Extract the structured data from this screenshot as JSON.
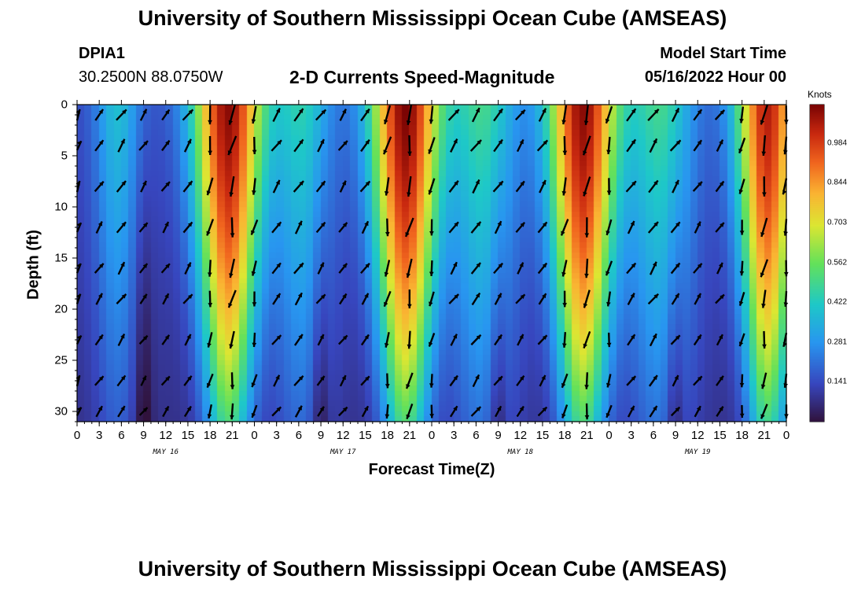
{
  "page": {
    "title": "University of Southern Mississippi Ocean Cube (AMSEAS)",
    "station_id": "DPIA1",
    "station_coords": "30.2500N  88.0750W",
    "plot_title": "2-D Currents Speed-Magnitude",
    "model_start_label": "Model Start Time",
    "model_start_value": "05/16/2022 Hour 00",
    "footer_title": "University of Southern Mississippi Ocean Cube (AMSEAS)"
  },
  "chart_data": {
    "type": "heatmap",
    "title": "2-D Currents Speed-Magnitude",
    "xlabel": "Forecast Time(Z)",
    "ylabel": "Depth (ft)",
    "colorbar_label": "Knots",
    "x_range_hours": [
      0,
      96
    ],
    "y_range_ft": [
      0,
      31
    ],
    "x_tick_labels": [
      "0",
      "3",
      "6",
      "9",
      "12",
      "15",
      "18",
      "21",
      "0",
      "3",
      "6",
      "9",
      "12",
      "15",
      "18",
      "21",
      "0",
      "3",
      "6",
      "9",
      "12",
      "15",
      "18",
      "21",
      "0",
      "3",
      "6",
      "9",
      "12",
      "15",
      "18",
      "21",
      "0"
    ],
    "date_labels": [
      {
        "text": "MAY 16",
        "hour": 12
      },
      {
        "text": "MAY 17",
        "hour": 36
      },
      {
        "text": "MAY 18",
        "hour": 60
      },
      {
        "text": "MAY 19",
        "hour": 84
      }
    ],
    "y_ticks": [
      0,
      5,
      10,
      15,
      20,
      25,
      30
    ],
    "colorbar_ticks": [
      "0.984",
      "0.844",
      "0.703",
      "0.562",
      "0.422",
      "0.281",
      "0.141"
    ],
    "colorbar_tick_values": [
      0.984,
      0.844,
      0.703,
      0.562,
      0.422,
      0.281,
      0.141
    ],
    "colorbar_range": [
      0.0,
      1.12
    ],
    "speed_peaks": [
      {
        "hour": 20.5,
        "max_knots": 1.1,
        "width_hours": 4.5
      },
      {
        "hour": 44.5,
        "max_knots": 1.12,
        "width_hours": 4.5
      },
      {
        "hour": 68.5,
        "max_knots": 1.1,
        "width_hours": 4.5
      },
      {
        "hour": 93.5,
        "max_knots": 1.05,
        "width_hours": 4.0
      }
    ],
    "secondary_peaks": [
      {
        "hour": 5.5,
        "max_knots": 0.45,
        "width_hours": 3.0
      },
      {
        "hour": 30.5,
        "max_knots": 0.5,
        "width_hours": 4.0
      },
      {
        "hour": 55.0,
        "max_knots": 0.55,
        "width_hours": 4.5
      },
      {
        "hour": 79.0,
        "max_knots": 0.55,
        "width_hours": 4.5
      }
    ],
    "slack_minima_hours": [
      9,
      33,
      57,
      81
    ],
    "vector_columns_hours": [
      0,
      3,
      6,
      9,
      12,
      15,
      18,
      21,
      24,
      27,
      30,
      33,
      36,
      39,
      42,
      45,
      48,
      51,
      54,
      57,
      60,
      63,
      66,
      69,
      72,
      75,
      78,
      81,
      84,
      87,
      90,
      93,
      96
    ],
    "vector_rows_ft": [
      1,
      4,
      8,
      12,
      16,
      19,
      23,
      27,
      30
    ]
  }
}
